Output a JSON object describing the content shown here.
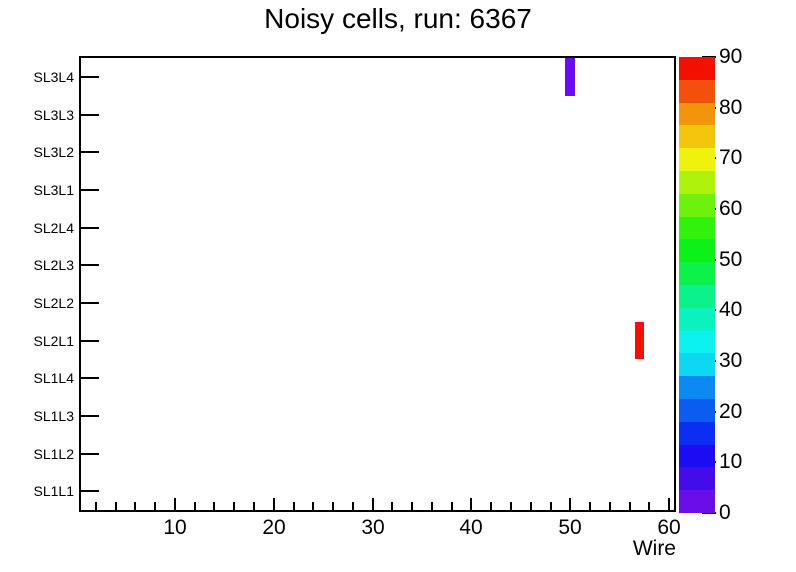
{
  "title": "Noisy cells, run: 6367",
  "colors": {
    "background": "#ffffff",
    "axis": "#000000",
    "text": "#000000",
    "cell_low": "#6a0de8",
    "cell_high": "#f31000"
  },
  "x_axis": {
    "title": "Wire",
    "tick_values": [
      10,
      20,
      30,
      40,
      50,
      60
    ],
    "minor_tick_step": 2,
    "range": [
      0.5,
      60.5
    ]
  },
  "y_axis": {
    "labels": [
      "SL3L4",
      "SL3L3",
      "SL3L2",
      "SL3L1",
      "SL2L4",
      "SL2L3",
      "SL2L2",
      "SL2L1",
      "SL1L4",
      "SL1L3",
      "SL1L2",
      "SL1L1"
    ]
  },
  "z_axis": {
    "tick_values": [
      0,
      10,
      20,
      30,
      40,
      50,
      60,
      70,
      80,
      90
    ],
    "tick_labels_top_to_bottom": [
      90,
      80,
      70,
      60,
      50,
      40,
      30,
      20,
      10,
      0
    ],
    "range": [
      0,
      90
    ]
  },
  "palette": {
    "n_contours": 20,
    "colors_bottom_to_top": [
      "#6a0de8",
      "#440ce8",
      "#1b0cf2",
      "#0c2ef2",
      "#0c5cf2",
      "#0c8af2",
      "#0cd8f2",
      "#0cf2ee",
      "#0cf2be",
      "#0cf28a",
      "#0cf24a",
      "#0cf218",
      "#30f20c",
      "#6cf20c",
      "#aef20c",
      "#eef20c",
      "#f2c60c",
      "#f2940c",
      "#f2500c",
      "#f31000"
    ]
  },
  "chart_data": {
    "type": "heatmap",
    "title": "Noisy cells, run: 6367",
    "xlabel": "Wire",
    "ylabel": "",
    "x_range": [
      0.5,
      60.5
    ],
    "x_major_ticks": [
      10,
      20,
      30,
      40,
      50,
      60
    ],
    "x_minor_tick_step": 2,
    "y_categories_bottom_to_top": [
      "SL1L1",
      "SL1L2",
      "SL1L3",
      "SL1L4",
      "SL2L1",
      "SL2L2",
      "SL2L3",
      "SL2L4",
      "SL3L1",
      "SL3L2",
      "SL3L3",
      "SL3L4"
    ],
    "z_range": [
      0,
      90
    ],
    "z_tick_interval": 10,
    "grid": false,
    "legend_position": "right-colorbar",
    "points": [
      {
        "layer": "SL3L4",
        "wire": 50,
        "value": 2,
        "color": "#6a0de8"
      },
      {
        "layer": "SL2L1",
        "wire": 57,
        "value": 90,
        "color": "#f31000"
      }
    ]
  }
}
